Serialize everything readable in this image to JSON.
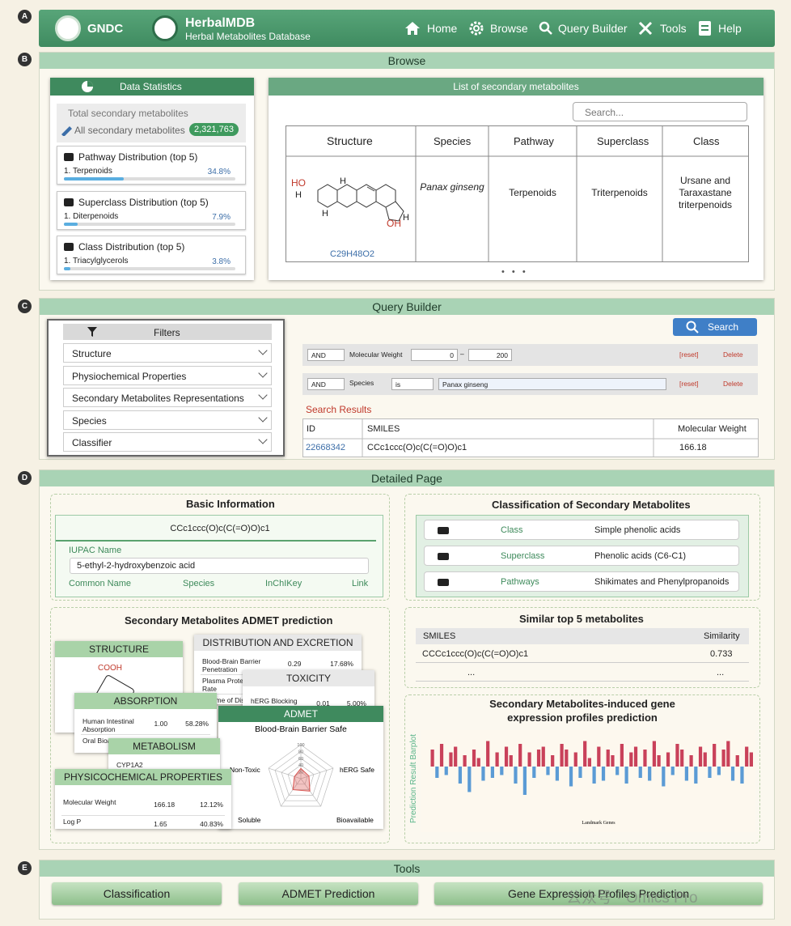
{
  "section_letters": [
    "A",
    "B",
    "C",
    "D",
    "E"
  ],
  "header": {
    "org": "GNDC",
    "title": "HerbalMDB",
    "subtitle": "Herbal Metabolites Database",
    "nav": [
      "Home",
      "Browse",
      "Query Builder",
      "Tools",
      "Help"
    ]
  },
  "browse": {
    "title": "Browse",
    "stats": {
      "title": "Data Statistics",
      "total_label": "Total secondary metabolites",
      "all_label": "All secondary metabolites",
      "all_count": "2,321,763",
      "distributions": [
        {
          "title": "Pathway Distribution (top 5)",
          "item": "1. Terpenoids",
          "percent": 34.8,
          "percent_label": "34.8%"
        },
        {
          "title": "Superclass Distribution (top 5)",
          "item": "1. Diterpenoids",
          "percent": 7.9,
          "percent_label": "7.9%"
        },
        {
          "title": "Class Distribution (top 5)",
          "item": "1. Triacylglycerols",
          "percent": 3.8,
          "percent_label": "3.8%"
        }
      ]
    },
    "list": {
      "title": "List of  secondary metabolites",
      "search_placeholder": "Search...",
      "columns": [
        "Structure",
        "Species",
        "Pathway",
        "Superclass",
        "Class"
      ],
      "row": {
        "formula": "C29H48O2",
        "species": "Panax ginseng",
        "pathway": "Terpenoids",
        "superclass": "Triterpenoids",
        "class": "Ursane and Taraxastane triterpenoids"
      },
      "structure_labels": [
        "HO",
        "H",
        "H",
        "H",
        "OH",
        "H"
      ],
      "pager": "• • •"
    }
  },
  "query": {
    "title": "Query Builder",
    "filters_title": "Filters",
    "filters": [
      "Structure",
      "Physiochemical Properties",
      "Secondary Metabolites Representations",
      "Species",
      "Classifier"
    ],
    "search_button": "Search",
    "conditions": [
      {
        "op": "AND",
        "field": "Molecular Weight",
        "min": "0",
        "dash": "–",
        "max": "200",
        "reset": "[reset]",
        "delete": "Delete"
      },
      {
        "op": "AND",
        "field": "Species",
        "relation": "is",
        "value": "Panax ginseng",
        "reset": "[reset]",
        "delete": "Delete"
      }
    ],
    "results_title": "Search Results",
    "results_columns": [
      "ID",
      "SMILES",
      "Molecular Weight"
    ],
    "results_rows": [
      [
        "22668342",
        "CCc1ccc(O)c(C(=O)O)c1",
        "166.18"
      ]
    ]
  },
  "detail": {
    "title": "Detailed Page",
    "basic": {
      "title": "Basic Information",
      "smiles": "CCc1ccc(O)c(C(=O)O)c1",
      "iupac_label": "IUPAC Name",
      "iupac": "5-ethyl-2-hydroxybenzoic acid",
      "links": [
        "Common Name",
        "Species",
        "InChIKey",
        "Link"
      ]
    },
    "classification": {
      "title": "Classification of Secondary Metabolites",
      "rows": [
        [
          "Class",
          "Simple phenolic acids"
        ],
        [
          "Superclass",
          "Phenolic acids (C6-C1)"
        ],
        [
          "Pathways",
          "Shikimates and Phenylpropanoids"
        ]
      ]
    },
    "admet": {
      "title": "Secondary Metabolites ADMET prediction",
      "structure": {
        "title": "STRUCTURE",
        "label": "COOH"
      },
      "distribution": {
        "title": "DISTRIBUTION AND  EXCRETION",
        "rows": [
          [
            "Blood-Brain Barrier Penetration",
            "0.29",
            "17.68%"
          ],
          [
            "Plasma Protein Binding Rate"
          ],
          [
            "Volume of Distribution"
          ]
        ]
      },
      "toxicity": {
        "title": "TOXICITY",
        "rows": [
          [
            "hERG Blocking",
            "0.01",
            "5.00%"
          ]
        ]
      },
      "absorption": {
        "title": "ABSORPTION",
        "rows": [
          [
            "Human Intestinal Absorption",
            "1.00",
            "58.28%"
          ],
          [
            "Oral Bioavailability"
          ]
        ]
      },
      "metabolism": {
        "title": "METABOLISM",
        "rows": [
          [
            "CYP1A2"
          ]
        ]
      },
      "physchem": {
        "title": "PHYSICOCHEMICAL PROPERTIES",
        "rows": [
          [
            "Molecular Weight",
            "166.18",
            "12.12%"
          ],
          [
            "Log P",
            "1.65",
            "40.83%"
          ]
        ]
      },
      "radar": {
        "type": "radar",
        "title": "ADMET",
        "axes": [
          "Blood-Brain Barrier Safe",
          "hERG Safe",
          "Bioavailable",
          "Soluble",
          "Non-Toxic"
        ],
        "values": [
          30,
          25,
          45,
          40,
          20
        ],
        "rlim": [
          0,
          100
        ],
        "rticks": [
          20,
          40,
          60,
          80,
          100
        ],
        "color": "#d9534f"
      }
    },
    "similar": {
      "title": "Similar top 5 metabolites",
      "columns": [
        "SMILES",
        "Similarity"
      ],
      "rows": [
        [
          "CCCc1ccc(O)c(C(=O)O)c1",
          "0.733"
        ],
        [
          "...",
          "..."
        ]
      ]
    },
    "gene": {
      "title": "Secondary Metabolites-induced gene",
      "title2": "expression profiles prediction",
      "chart": {
        "type": "bar",
        "ylabel": "Prediction Result Barplot",
        "xlabel": "Landmark Genes",
        "ylim": [
          -1,
          1
        ],
        "pos_color": "#c9415a",
        "neg_color": "#5b9bd5",
        "values": [
          0.6,
          -0.4,
          0.8,
          -0.3,
          0.5,
          0.7,
          -0.6,
          0.4,
          -0.9,
          0.6,
          0.3,
          -0.5,
          0.9,
          -0.4,
          0.5,
          -0.3,
          0.7,
          0.4,
          -0.6,
          0.8,
          -1.0,
          0.5,
          -0.4,
          0.6,
          0.7,
          -0.3,
          0.4,
          -0.5,
          0.8,
          0.6,
          -0.7,
          0.5,
          -0.4,
          0.9,
          0.3,
          -0.6,
          0.7,
          -0.5,
          0.6,
          0.4,
          -0.3,
          0.8,
          -0.6,
          0.5,
          0.7,
          -0.4,
          0.6,
          -0.5,
          0.9,
          0.4,
          -0.7,
          0.5,
          -0.3,
          0.8,
          0.6,
          -0.5,
          0.4,
          -0.6,
          0.7,
          0.5,
          -0.4,
          0.8,
          -0.3,
          0.6,
          0.9,
          -0.5,
          0.4,
          -0.6,
          0.7,
          0.5
        ]
      }
    }
  },
  "tools": {
    "title": "Tools",
    "buttons": [
      "Classification",
      "ADMET Prediction",
      "Gene Expression Profiles Prediction"
    ]
  },
  "watermark": "公众号 · Omics Pro"
}
